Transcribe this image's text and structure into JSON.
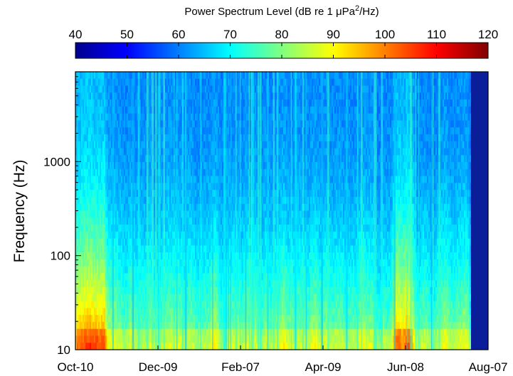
{
  "chart_data": {
    "type": "heatmap",
    "title": "Power Spectrum Level (dB re 1 μPa²/Hz)",
    "title_main": "Power Spectrum Level (dB re 1 μPa",
    "title_sup": "2",
    "title_end": "/Hz)",
    "xlabel": "",
    "ylabel": "Frequency (Hz)",
    "y_scale": "log",
    "ylim": [
      10,
      9000
    ],
    "y_ticks": [
      10,
      100,
      1000
    ],
    "y_tick_labels": [
      "10",
      "100",
      "1000"
    ],
    "x_tick_labels": [
      "Oct-10",
      "Dec-09",
      "Feb-07",
      "Apr-09",
      "Jun-08",
      "Aug-07"
    ],
    "colorbar": {
      "range": [
        40,
        120
      ],
      "ticks": [
        40,
        50,
        60,
        70,
        80,
        90,
        100,
        110,
        120
      ],
      "tick_labels": [
        "40",
        "50",
        "60",
        "70",
        "80",
        "90",
        "100",
        "110",
        "120"
      ],
      "colormap": "jet",
      "position": "top"
    }
  }
}
